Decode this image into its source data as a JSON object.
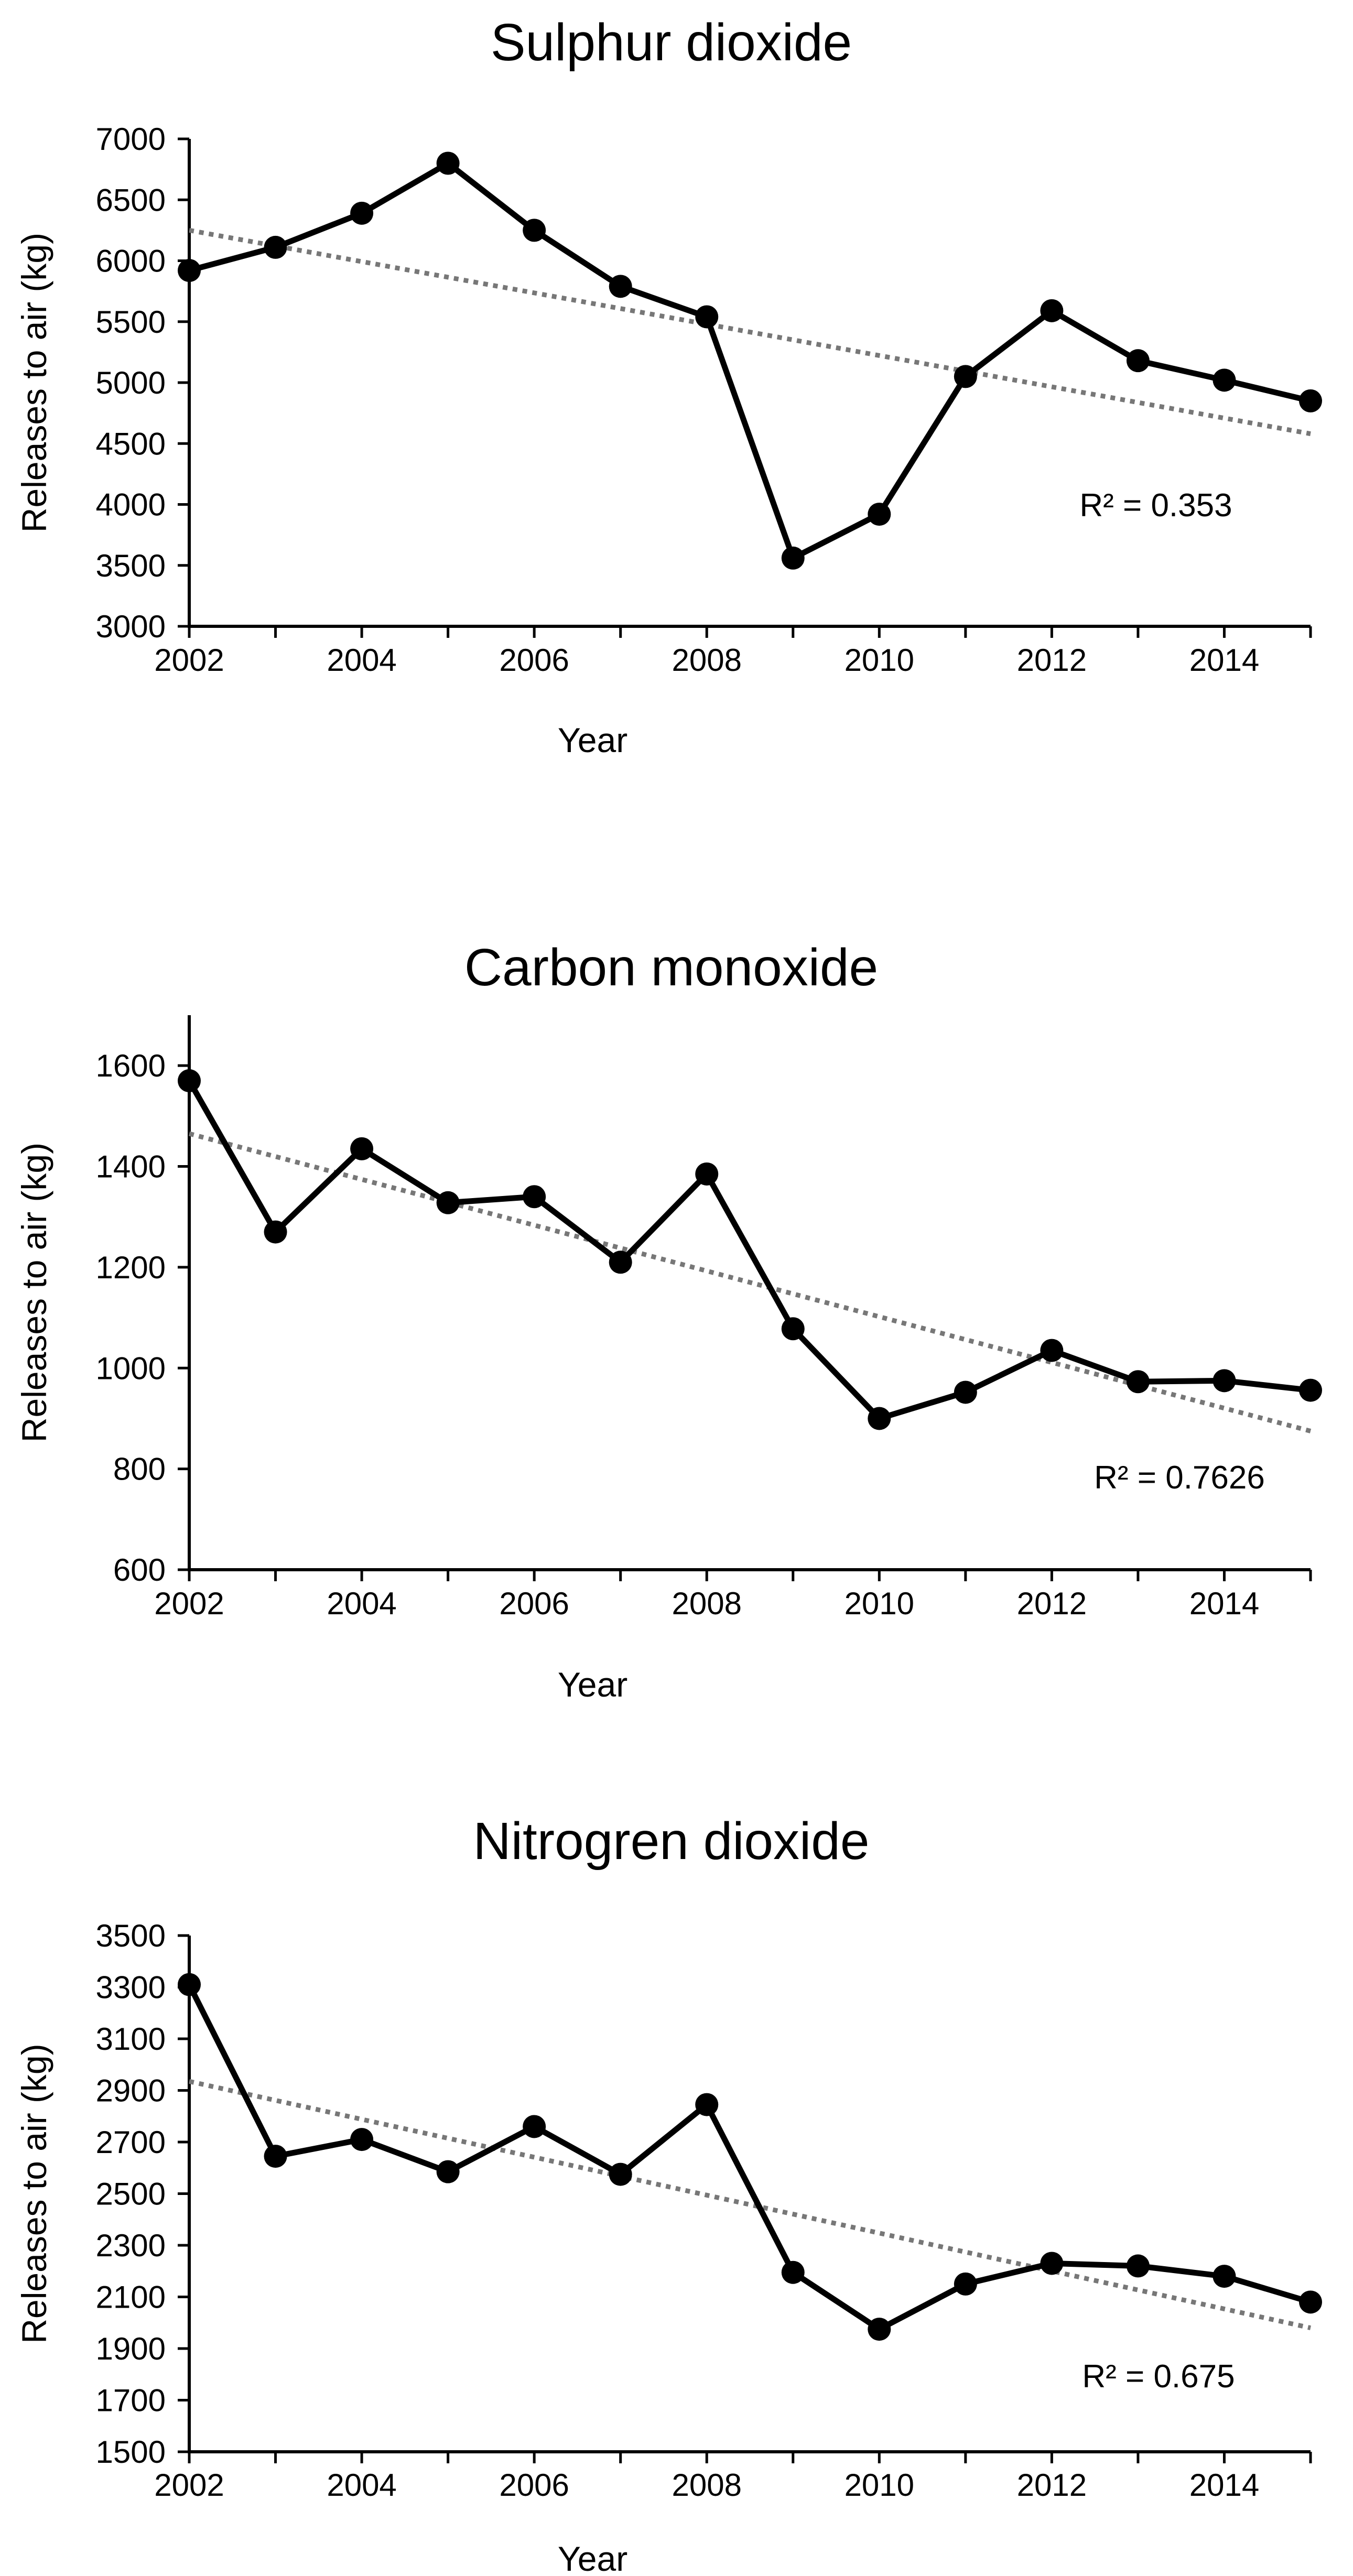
{
  "chart_data": [
    {
      "type": "line",
      "title": "Sulphur dioxide",
      "xlabel": "Year",
      "ylabel": "Releases to air (kg)",
      "x": [
        2002,
        2003,
        2004,
        2005,
        2006,
        2007,
        2008,
        2009,
        2010,
        2011,
        2012,
        2013,
        2014,
        2015
      ],
      "values": [
        5920,
        6110,
        6390,
        6800,
        6250,
        5790,
        5540,
        3560,
        3920,
        5050,
        5590,
        5180,
        5020,
        4850
      ],
      "xlim": [
        2002,
        2015
      ],
      "ylim": [
        3000,
        7000
      ],
      "yticks": [
        3000,
        3500,
        4000,
        4500,
        5000,
        5500,
        6000,
        6500,
        7000
      ],
      "xticks": [
        2002,
        2004,
        2006,
        2008,
        2010,
        2012,
        2014
      ],
      "trendline": {
        "type": "linear",
        "style": "dotted",
        "start": [
          2002,
          6250
        ],
        "end": [
          2015,
          4580
        ]
      },
      "r_squared_label": "R² = 0.353"
    },
    {
      "type": "line",
      "title": "Carbon monoxide",
      "xlabel": "Year",
      "ylabel": "Releases to air (kg)",
      "x": [
        2002,
        2003,
        2004,
        2005,
        2006,
        2007,
        2008,
        2009,
        2010,
        2011,
        2012,
        2013,
        2014,
        2015
      ],
      "values": [
        1570,
        1270,
        1435,
        1328,
        1340,
        1210,
        1385,
        1078,
        900,
        952,
        1035,
        973,
        975,
        956
      ],
      "xlim": [
        2002,
        2015
      ],
      "ylim": [
        600,
        1700
      ],
      "yticks": [
        600,
        800,
        1000,
        1200,
        1400,
        1600
      ],
      "xticks": [
        2002,
        2004,
        2006,
        2008,
        2010,
        2012,
        2014
      ],
      "trendline": {
        "type": "linear",
        "style": "dotted",
        "start": [
          2002,
          1465
        ],
        "end": [
          2015,
          875
        ]
      },
      "r_squared_label": "R² = 0.7626"
    },
    {
      "type": "line",
      "title": "Nitrogren dioxide",
      "xlabel": "Year",
      "ylabel": "Releases to air (kg)",
      "x": [
        2002,
        2003,
        2004,
        2005,
        2006,
        2007,
        2008,
        2009,
        2010,
        2011,
        2012,
        2013,
        2014,
        2015
      ],
      "values": [
        3310,
        2645,
        2710,
        2585,
        2760,
        2575,
        2845,
        2195,
        1975,
        2150,
        2230,
        2220,
        2180,
        2080
      ],
      "xlim": [
        2002,
        2015
      ],
      "ylim": [
        1500,
        3500
      ],
      "yticks": [
        1500,
        1700,
        1900,
        2100,
        2300,
        2500,
        2700,
        2900,
        3100,
        3300,
        3500
      ],
      "xticks": [
        2002,
        2004,
        2006,
        2008,
        2010,
        2012,
        2014
      ],
      "trendline": {
        "type": "linear",
        "style": "dotted",
        "start": [
          2002,
          2935
        ],
        "end": [
          2015,
          1980
        ]
      },
      "r_squared_label": "R² = 0.675"
    }
  ]
}
